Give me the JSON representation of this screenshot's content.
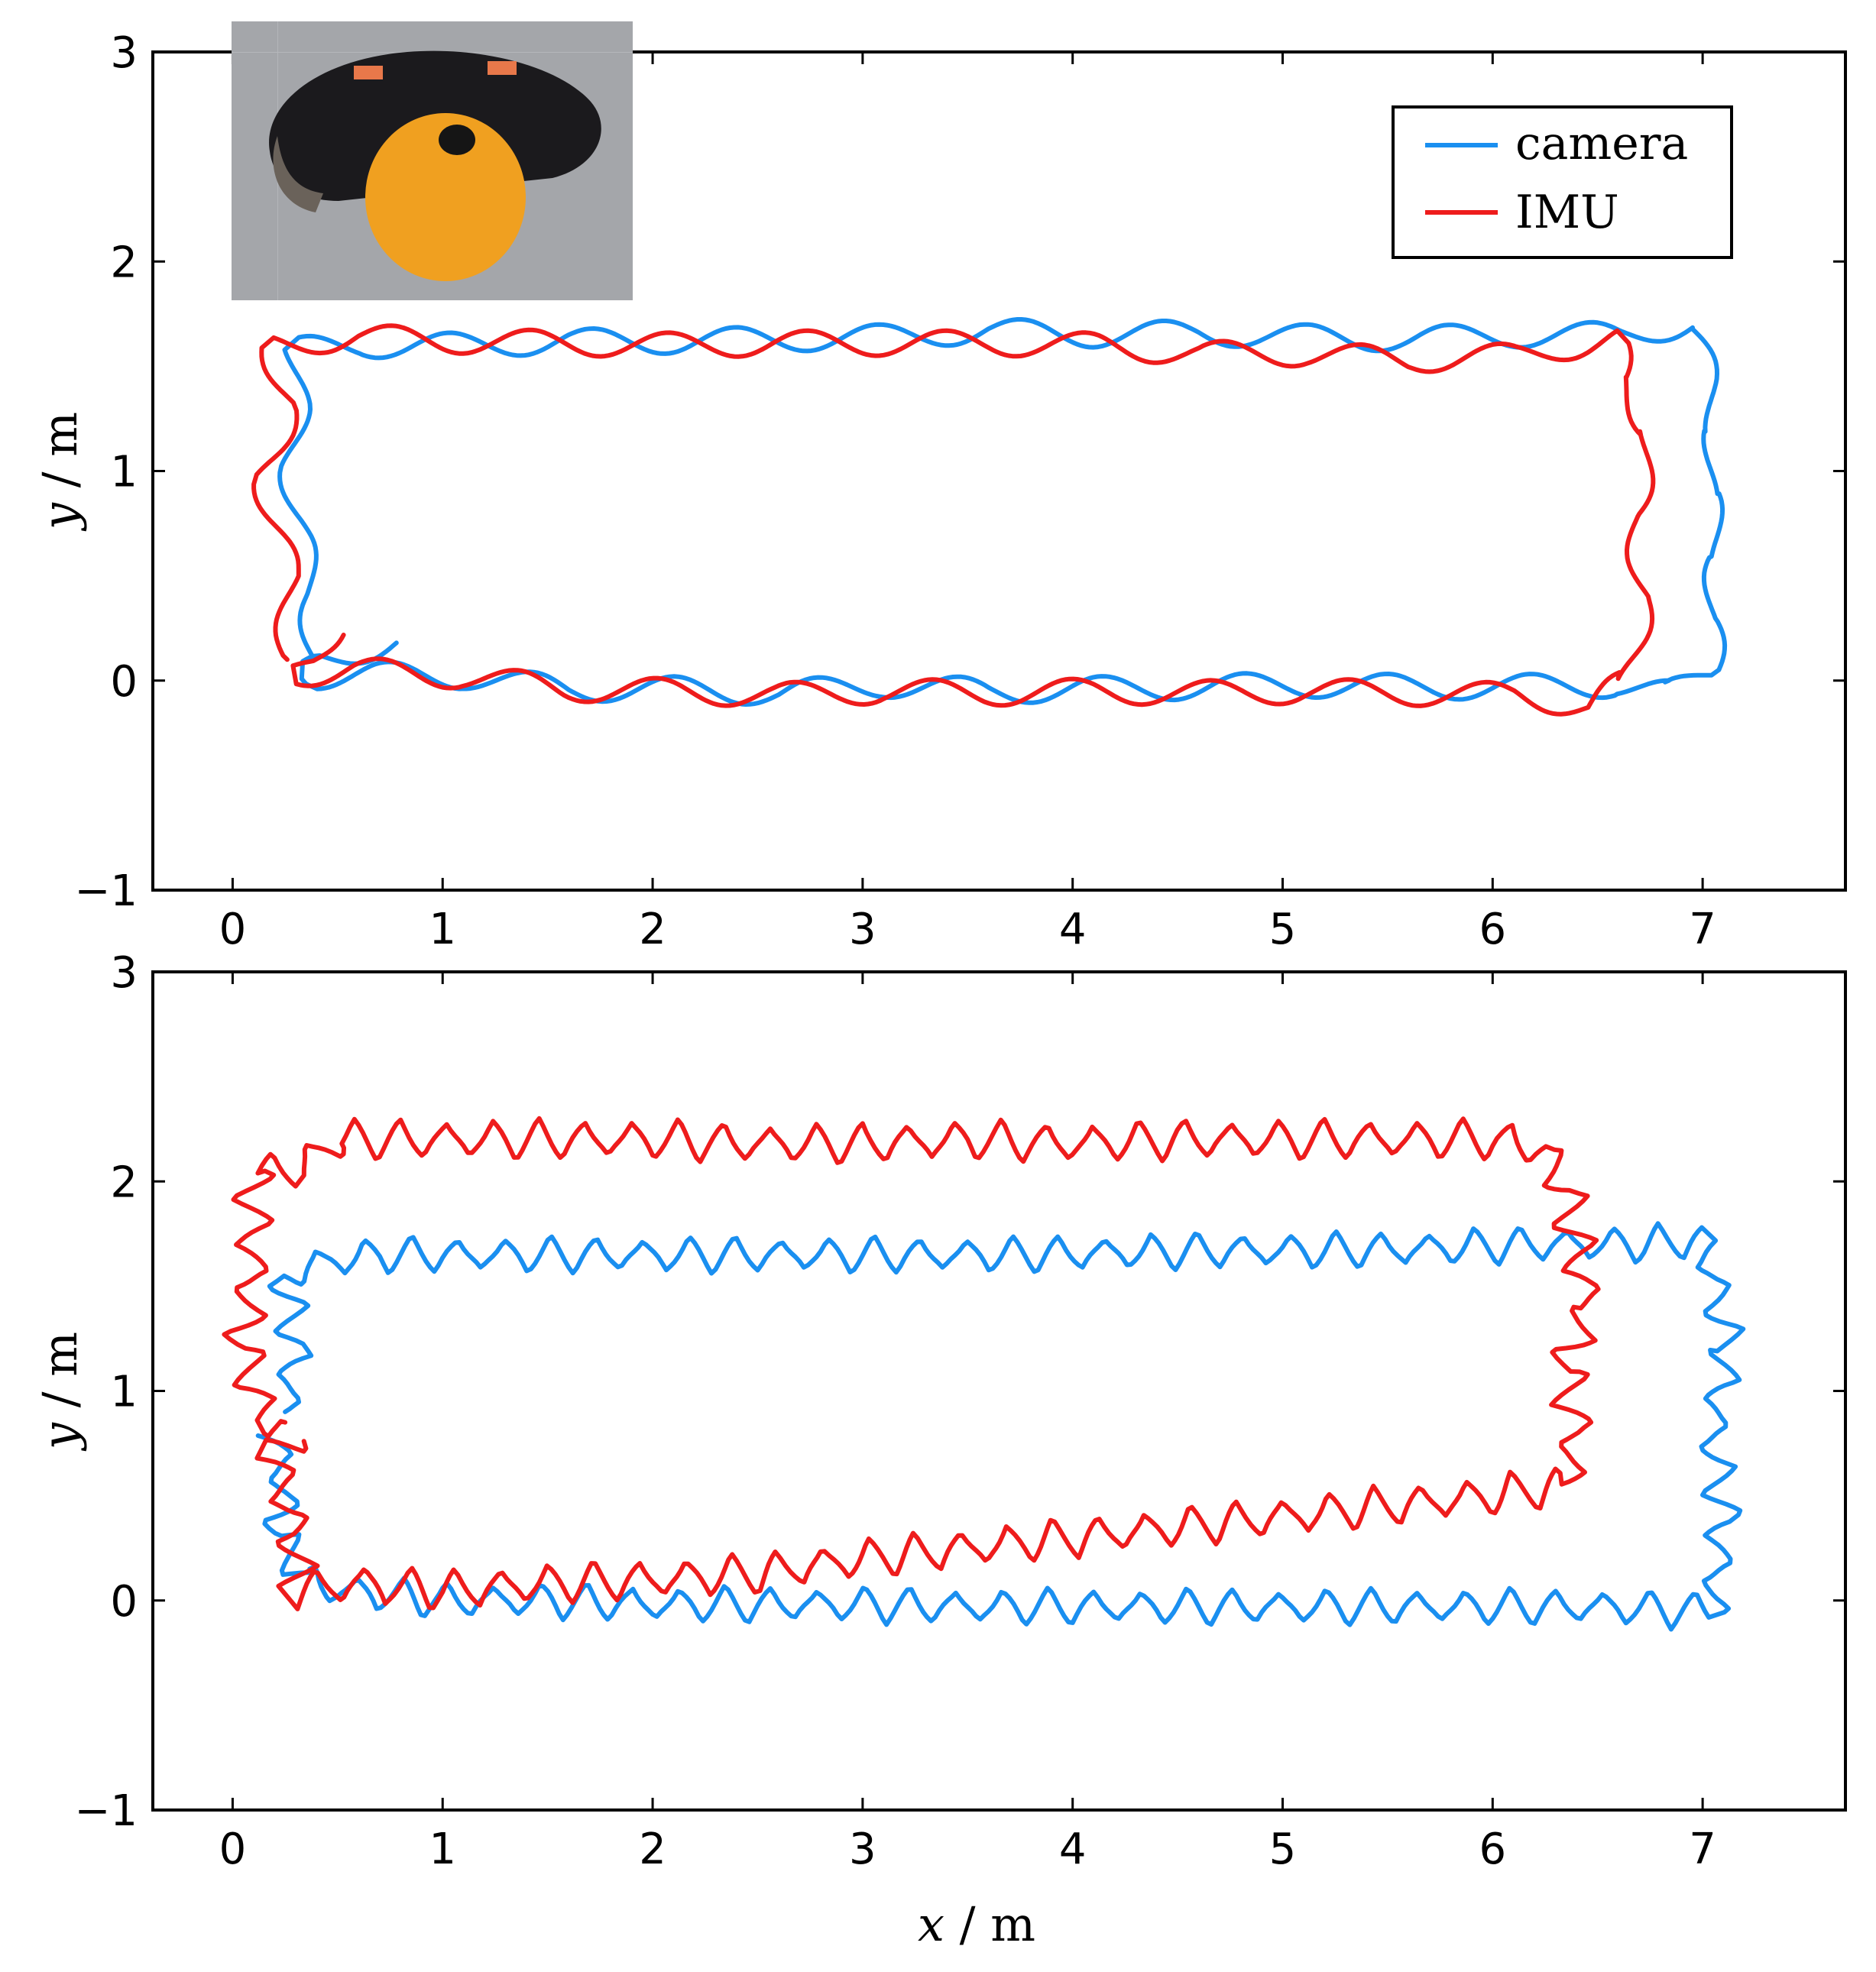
{
  "colors": {
    "camera": "#1a8ff0",
    "imu": "#ee1c1c",
    "axes": "#000000",
    "background": "#ffffff"
  },
  "legend": {
    "items": [
      {
        "key": "camera",
        "label": "camera"
      },
      {
        "key": "imu",
        "label": "IMU"
      }
    ],
    "position": "top-right of upper panel"
  },
  "inset_photo": {
    "description_icon": "robot-photo-icon",
    "position": "top-left of upper panel"
  },
  "chart_data": [
    {
      "type": "line",
      "panel": "top",
      "title": "",
      "xlabel": "",
      "ylabel": "y / m",
      "xlim": [
        -0.38,
        7.68
      ],
      "ylim": [
        -1,
        3
      ],
      "x_ticks": [
        "0",
        "1",
        "2",
        "3",
        "4",
        "5",
        "6",
        "7"
      ],
      "y_ticks": [
        "−1",
        "0",
        "1",
        "2",
        "3"
      ],
      "grid": false,
      "series": [
        {
          "name": "camera",
          "shape": "rectangle loop with small waviness",
          "corners": [
            [
              0.33,
              0.05
            ],
            [
              7.05,
              -0.05
            ],
            [
              7.05,
              1.72
            ],
            [
              0.3,
              1.58
            ]
          ],
          "start": [
            0.78,
            0.18
          ],
          "wave_amplitude": 0.06,
          "wave_period": 0.68,
          "values": [
            [
              0.78,
              0.18
            ],
            [
              0.55,
              0.13
            ],
            [
              0.4,
              0.1
            ],
            [
              0.36,
              0.05
            ],
            [
              0.4,
              0.02
            ],
            [
              0.7,
              0.03
            ],
            [
              1.1,
              0.02
            ],
            [
              1.6,
              -0.04
            ],
            [
              2.1,
              -0.04
            ],
            [
              2.6,
              -0.06
            ],
            [
              3.1,
              -0.02
            ],
            [
              3.6,
              -0.05
            ],
            [
              4.1,
              -0.04
            ],
            [
              4.6,
              -0.03
            ],
            [
              5.1,
              -0.02
            ],
            [
              5.6,
              -0.03
            ],
            [
              6.1,
              -0.03
            ],
            [
              6.6,
              -0.02
            ],
            [
              6.85,
              -0.06
            ],
            [
              7.05,
              0.05
            ],
            [
              7.04,
              0.3
            ],
            [
              7.08,
              0.6
            ],
            [
              7.02,
              0.9
            ],
            [
              7.07,
              1.2
            ],
            [
              7.02,
              1.45
            ],
            [
              6.95,
              1.7
            ],
            [
              6.6,
              1.65
            ],
            [
              6.1,
              1.65
            ],
            [
              5.6,
              1.63
            ],
            [
              5.1,
              1.64
            ],
            [
              4.6,
              1.66
            ],
            [
              4.1,
              1.65
            ],
            [
              3.6,
              1.67
            ],
            [
              3.1,
              1.64
            ],
            [
              2.6,
              1.63
            ],
            [
              2.1,
              1.62
            ],
            [
              1.6,
              1.62
            ],
            [
              1.1,
              1.6
            ],
            [
              0.6,
              1.6
            ],
            [
              0.3,
              1.58
            ],
            [
              0.31,
              1.3
            ],
            [
              0.28,
              1.0
            ],
            [
              0.32,
              0.7
            ],
            [
              0.38,
              0.4
            ],
            [
              0.38,
              0.1
            ]
          ]
        },
        {
          "name": "IMU",
          "shape": "rectangle loop with sinusoidal waviness",
          "corners": [
            [
              0.25,
              0.05
            ],
            [
              6.65,
              -0.1
            ],
            [
              6.6,
              1.63
            ],
            [
              0.18,
              1.6
            ]
          ],
          "start": [
            0.48,
            0.25
          ],
          "wave_amplitude": 0.06,
          "wave_period": 0.66,
          "values": [
            [
              0.48,
              0.25
            ],
            [
              0.38,
              0.1
            ],
            [
              0.3,
              0.03
            ],
            [
              0.6,
              0.05
            ],
            [
              1.1,
              0.02
            ],
            [
              1.6,
              -0.04
            ],
            [
              2.1,
              -0.05
            ],
            [
              2.6,
              -0.07
            ],
            [
              3.1,
              -0.05
            ],
            [
              3.6,
              -0.06
            ],
            [
              4.1,
              -0.05
            ],
            [
              4.6,
              -0.06
            ],
            [
              5.1,
              -0.05
            ],
            [
              5.6,
              -0.06
            ],
            [
              6.1,
              -0.07
            ],
            [
              6.45,
              -0.12
            ],
            [
              6.65,
              0.0
            ],
            [
              6.72,
              0.4
            ],
            [
              6.68,
              0.8
            ],
            [
              6.75,
              1.2
            ],
            [
              6.6,
              1.45
            ],
            [
              6.6,
              1.63
            ],
            [
              6.1,
              1.55
            ],
            [
              5.6,
              1.53
            ],
            [
              5.1,
              1.56
            ],
            [
              4.6,
              1.56
            ],
            [
              4.1,
              1.6
            ],
            [
              3.6,
              1.61
            ],
            [
              3.1,
              1.61
            ],
            [
              2.6,
              1.61
            ],
            [
              2.1,
              1.6
            ],
            [
              1.6,
              1.61
            ],
            [
              1.1,
              1.62
            ],
            [
              0.6,
              1.64
            ],
            [
              0.18,
              1.6
            ],
            [
              0.27,
              1.3
            ],
            [
              0.15,
              0.95
            ],
            [
              0.27,
              0.5
            ],
            [
              0.26,
              0.1
            ]
          ]
        }
      ]
    },
    {
      "type": "line",
      "panel": "bottom",
      "title": "",
      "xlabel": "x / m",
      "ylabel": "y / m",
      "xlim": [
        -0.38,
        7.68
      ],
      "ylim": [
        -1,
        3
      ],
      "x_ticks": [
        "0",
        "1",
        "2",
        "3",
        "4",
        "5",
        "6",
        "7"
      ],
      "y_ticks": [
        "−1",
        "0",
        "1",
        "2",
        "3"
      ],
      "grid": false,
      "series": [
        {
          "name": "camera",
          "shape": "rectangle loop with strong zigzag",
          "corners": [
            [
              0.35,
              0.0
            ],
            [
              7.05,
              -0.05
            ],
            [
              7.1,
              1.7
            ],
            [
              0.45,
              1.62
            ]
          ],
          "start": [
            0.2,
            0.8
          ],
          "wave_amplitude": 0.08,
          "wave_period": 0.22,
          "values": [
            [
              0.2,
              0.8
            ],
            [
              0.25,
              0.5
            ],
            [
              0.22,
              0.3
            ],
            [
              0.35,
              0.1
            ],
            [
              0.5,
              0.05
            ],
            [
              1.0,
              0.0
            ],
            [
              1.5,
              0.0
            ],
            [
              2.0,
              -0.02
            ],
            [
              2.5,
              -0.02
            ],
            [
              3.0,
              -0.02
            ],
            [
              3.5,
              -0.03
            ],
            [
              4.0,
              -0.03
            ],
            [
              4.5,
              -0.03
            ],
            [
              5.0,
              -0.03
            ],
            [
              5.5,
              -0.03
            ],
            [
              6.0,
              -0.03
            ],
            [
              6.5,
              -0.03
            ],
            [
              7.05,
              -0.05
            ],
            [
              7.1,
              0.4
            ],
            [
              7.05,
              0.8
            ],
            [
              7.12,
              1.2
            ],
            [
              7.05,
              1.55
            ],
            [
              7.0,
              1.72
            ],
            [
              6.7,
              1.7
            ],
            [
              6.2,
              1.7
            ],
            [
              5.7,
              1.68
            ],
            [
              5.2,
              1.67
            ],
            [
              4.7,
              1.67
            ],
            [
              4.2,
              1.66
            ],
            [
              3.7,
              1.65
            ],
            [
              3.2,
              1.65
            ],
            [
              2.7,
              1.65
            ],
            [
              2.2,
              1.65
            ],
            [
              1.7,
              1.65
            ],
            [
              1.2,
              1.65
            ],
            [
              0.7,
              1.65
            ],
            [
              0.45,
              1.62
            ],
            [
              0.25,
              1.55
            ],
            [
              0.3,
              1.2
            ],
            [
              0.25,
              0.9
            ]
          ]
        },
        {
          "name": "IMU",
          "shape": "slanted loop with strong zigzag",
          "corners": [
            [
              0.3,
              0.05
            ],
            [
              6.4,
              0.6
            ],
            [
              6.4,
              2.2
            ],
            [
              0.25,
              2.05
            ]
          ],
          "start": [
            0.3,
            0.8
          ],
          "wave_amplitude": 0.09,
          "wave_period": 0.22,
          "values": [
            [
              0.3,
              0.8
            ],
            [
              0.2,
              0.7
            ],
            [
              0.3,
              0.3
            ],
            [
              0.3,
              0.05
            ],
            [
              0.6,
              0.08
            ],
            [
              1.0,
              0.05
            ],
            [
              1.5,
              0.08
            ],
            [
              2.0,
              0.1
            ],
            [
              2.5,
              0.13
            ],
            [
              3.0,
              0.2
            ],
            [
              3.5,
              0.25
            ],
            [
              4.0,
              0.3
            ],
            [
              4.5,
              0.35
            ],
            [
              5.0,
              0.4
            ],
            [
              5.5,
              0.45
            ],
            [
              6.0,
              0.5
            ],
            [
              6.35,
              0.55
            ],
            [
              6.4,
              0.8
            ],
            [
              6.35,
              1.1
            ],
            [
              6.45,
              1.4
            ],
            [
              6.4,
              1.7
            ],
            [
              6.35,
              1.95
            ],
            [
              6.25,
              2.15
            ],
            [
              6.0,
              2.2
            ],
            [
              5.5,
              2.2
            ],
            [
              5.0,
              2.2
            ],
            [
              4.5,
              2.2
            ],
            [
              4.0,
              2.18
            ],
            [
              3.5,
              2.2
            ],
            [
              3.0,
              2.18
            ],
            [
              2.5,
              2.18
            ],
            [
              2.0,
              2.2
            ],
            [
              1.5,
              2.2
            ],
            [
              1.0,
              2.2
            ],
            [
              0.5,
              2.2
            ],
            [
              0.3,
              2.05
            ],
            [
              0.1,
              2.05
            ],
            [
              0.1,
              1.6
            ],
            [
              0.05,
              1.2
            ],
            [
              0.15,
              0.85
            ],
            [
              0.25,
              0.85
            ]
          ]
        }
      ]
    }
  ]
}
